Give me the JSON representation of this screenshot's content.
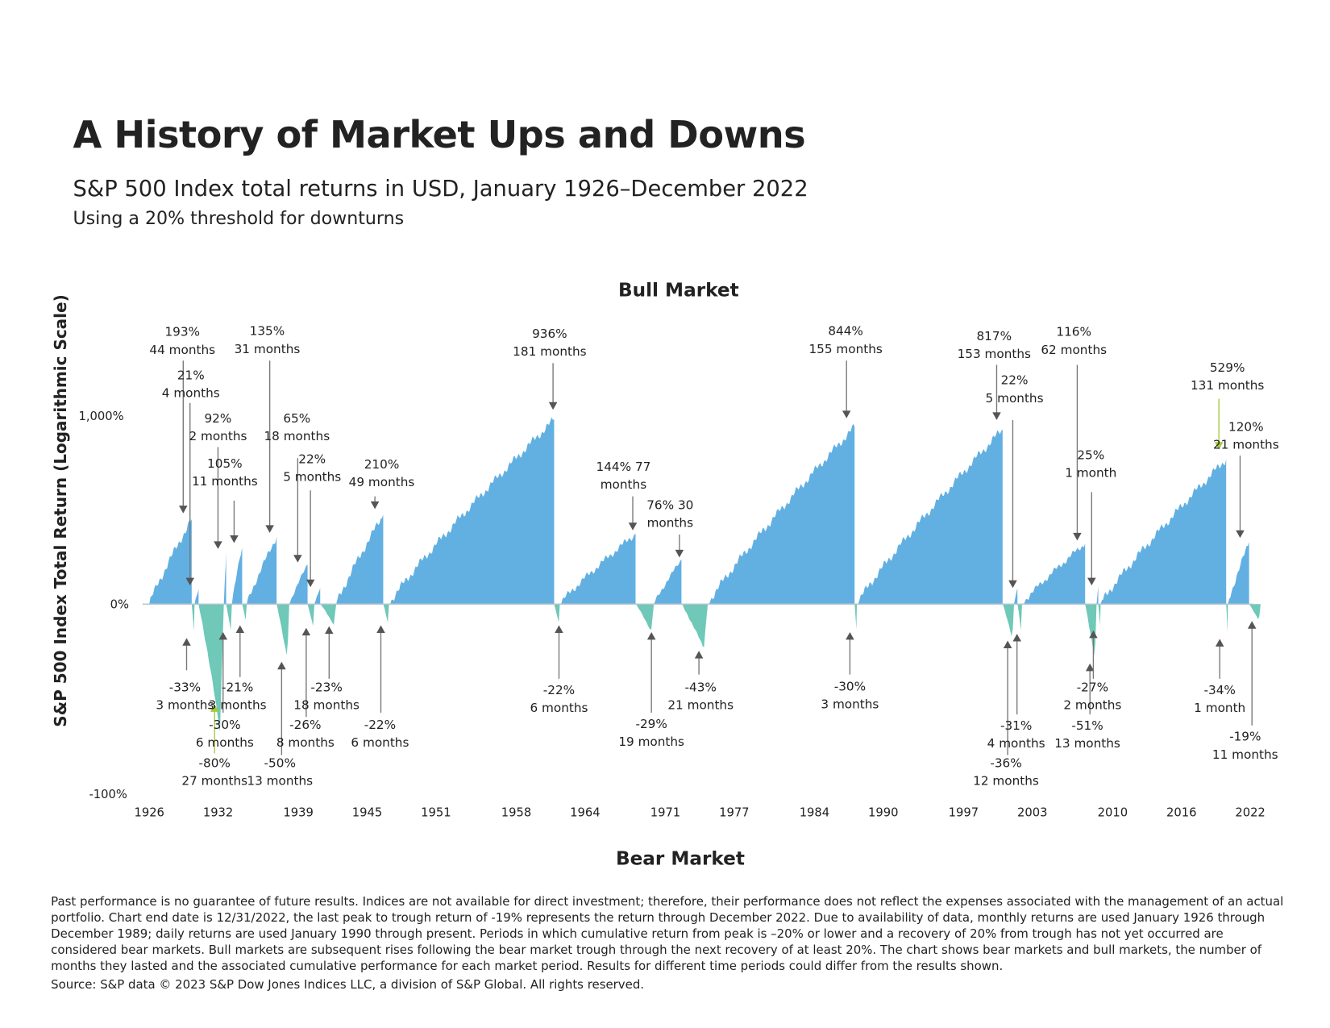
{
  "title": "A History of Market Ups and Downs",
  "subtitle": "S&P 500 Index total returns in USD, January 1926–December 2022",
  "subnote": "Using a 20% threshold for downturns",
  "footer": "Past performance is no guarantee of future results. Indices are not available for direct investment; therefore, their performance does not reflect the expenses associated with the management of an actual portfolio. Chart end date is 12/31/2022, the last peak to trough return of -19% represents the return through December 2022. Due to availability of data, monthly returns are used January 1926 through December 1989; daily returns are used January 1990 through present. Periods in which cumulative return from peak is –20% or lower and a recovery of 20% from trough has not yet occurred are considered bear markets. Bull markets are subsequent rises following the bear market trough through the next recovery of at least 20%. The chart shows bear markets and bull markets, the number of months they lasted and the associated cumulative performance for each market period. Results for different time periods could differ from the results shown.",
  "source": "Source: S&P data © 2023 S&P Dow Jones Indices LLC, a division of S&P Global. All rights reserved.",
  "colors": {
    "bull": "#62b0e2",
    "bear": "#6fc8b8",
    "arrow": "#555555",
    "highlight": "#a6c83c"
  },
  "chart_data": {
    "type": "area",
    "title": "Bull Market",
    "bottom_title": "Bear Market",
    "ylabel": "S&P 500 Index Total Return (Logarithmic Scale)",
    "y_ticks": [
      "1,000%",
      "0%",
      "-100%"
    ],
    "x_ticks": [
      "1926",
      "1932",
      "1939",
      "1945",
      "1951",
      "1958",
      "1964",
      "1971",
      "1977",
      "1984",
      "1990",
      "1997",
      "2003",
      "2010",
      "2016",
      "2022"
    ],
    "xlim": [
      1926,
      2022
    ],
    "periods": [
      {
        "type": "bull",
        "start": 1926.0,
        "end": 1929.7,
        "return": "193%",
        "months": "44 months",
        "r": 193
      },
      {
        "type": "bear",
        "start": 1929.7,
        "end": 1929.95,
        "return": "-33%",
        "months": "3 months",
        "r": -33
      },
      {
        "type": "bull",
        "start": 1929.95,
        "end": 1930.3,
        "return": "21%",
        "months": "4 months",
        "r": 21
      },
      {
        "type": "bear",
        "start": 1930.3,
        "end": 1932.5,
        "return": "-80%",
        "months": "27 months",
        "r": -80
      },
      {
        "type": "bull",
        "start": 1932.5,
        "end": 1932.7,
        "return": "92%",
        "months": "2 months",
        "r": 92
      },
      {
        "type": "bear",
        "start": 1932.7,
        "end": 1933.2,
        "return": "-30%",
        "months": "6 months",
        "r": -30
      },
      {
        "type": "bull",
        "start": 1933.2,
        "end": 1934.1,
        "return": "105%",
        "months": "11 months",
        "r": 105
      },
      {
        "type": "bear",
        "start": 1934.1,
        "end": 1934.5,
        "return": "-21%",
        "months": "3 months",
        "r": -21
      },
      {
        "type": "bull",
        "start": 1934.5,
        "end": 1937.1,
        "return": "135%",
        "months": "31 months",
        "r": 135
      },
      {
        "type": "bear",
        "start": 1937.1,
        "end": 1938.2,
        "return": "-50%",
        "months": "13 months",
        "r": -50
      },
      {
        "type": "bull",
        "start": 1938.2,
        "end": 1939.8,
        "return": "65%",
        "months": "18 months",
        "r": 65
      },
      {
        "type": "bear",
        "start": 1939.8,
        "end": 1940.4,
        "return": "-26%",
        "months": "8 months",
        "r": -26
      },
      {
        "type": "bull",
        "start": 1940.4,
        "end": 1940.9,
        "return": "22%",
        "months": "5 months",
        "r": 22
      },
      {
        "type": "bear",
        "start": 1940.9,
        "end": 1942.3,
        "return": "-23%",
        "months": "18 months",
        "r": -23
      },
      {
        "type": "bull",
        "start": 1942.3,
        "end": 1946.4,
        "return": "210%",
        "months": "49 months",
        "r": 210
      },
      {
        "type": "bear",
        "start": 1946.4,
        "end": 1946.9,
        "return": "-22%",
        "months": "6 months",
        "r": -22
      },
      {
        "type": "bull",
        "start": 1946.9,
        "end": 1961.3,
        "return": "936%",
        "months": "181 months",
        "r": 936
      },
      {
        "type": "bear",
        "start": 1961.3,
        "end": 1961.8,
        "return": "-22%",
        "months": "6 months",
        "r": -22
      },
      {
        "type": "bull",
        "start": 1961.8,
        "end": 1968.4,
        "return": "144% 77",
        "months": "months",
        "r": 144
      },
      {
        "type": "bear",
        "start": 1968.4,
        "end": 1970.0,
        "return": "-29%",
        "months": "19 months",
        "r": -29
      },
      {
        "type": "bull",
        "start": 1970.0,
        "end": 1972.4,
        "return": "76% 30",
        "months": "months",
        "r": 76
      },
      {
        "type": "bear",
        "start": 1972.4,
        "end": 1974.7,
        "return": "-43%",
        "months": "21 months",
        "r": -43
      },
      {
        "type": "bull",
        "start": 1974.7,
        "end": 1987.5,
        "return": "844%",
        "months": "155 months",
        "r": 844
      },
      {
        "type": "bear",
        "start": 1987.5,
        "end": 1987.7,
        "return": "-30%",
        "months": "3 months",
        "r": -30
      },
      {
        "type": "bull",
        "start": 1987.7,
        "end": 2000.4,
        "return": "817%",
        "months": "153 months",
        "r": 817
      },
      {
        "type": "bear",
        "start": 2000.4,
        "end": 2001.4,
        "return": "-36%",
        "months": "12 months",
        "r": -36
      },
      {
        "type": "bull",
        "start": 2001.4,
        "end": 2001.7,
        "return": "22%",
        "months": "5 months",
        "r": 22
      },
      {
        "type": "bear",
        "start": 2001.7,
        "end": 2002.1,
        "return": "-31%",
        "months": "4 months",
        "r": -31
      },
      {
        "type": "bull",
        "start": 2002.1,
        "end": 2007.6,
        "return": "116%",
        "months": "62 months",
        "r": 116
      },
      {
        "type": "bear",
        "start": 2007.6,
        "end": 2008.6,
        "return": "-51%",
        "months": "13 months",
        "r": -51
      },
      {
        "type": "bull",
        "start": 2008.6,
        "end": 2008.75,
        "return": "25%",
        "months": "1 month",
        "r": 25
      },
      {
        "type": "bear",
        "start": 2008.75,
        "end": 2008.95,
        "return": "-27%",
        "months": "2 months",
        "r": -27
      },
      {
        "type": "bull",
        "start": 2008.95,
        "end": 2019.9,
        "return": "529%",
        "months": "131 months",
        "r": 529
      },
      {
        "type": "bear",
        "start": 2019.9,
        "end": 2020.05,
        "return": "-34%",
        "months": "1 month",
        "r": -34
      },
      {
        "type": "bull",
        "start": 2020.05,
        "end": 2021.9,
        "return": "120%",
        "months": "21 months",
        "r": 120
      },
      {
        "type": "bear",
        "start": 2021.9,
        "end": 2022.9,
        "return": "-19%",
        "months": "11 months",
        "r": -19
      }
    ]
  }
}
